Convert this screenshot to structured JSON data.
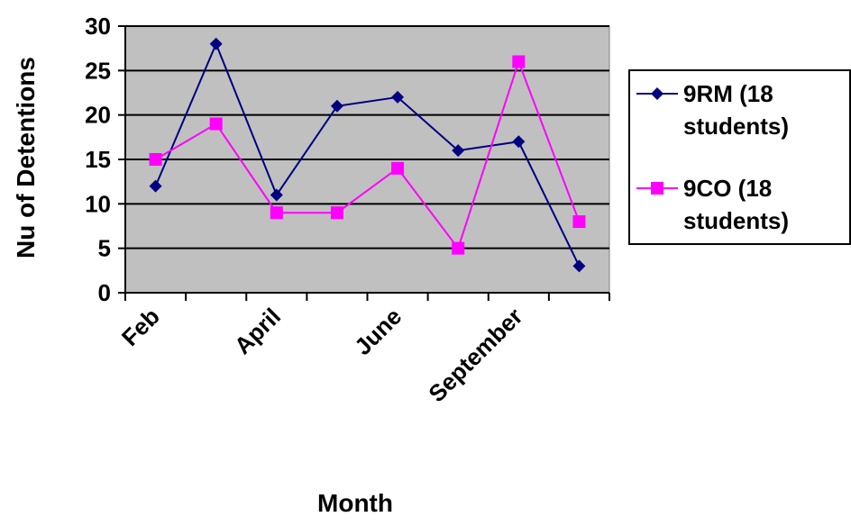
{
  "chart_data": {
    "type": "line",
    "xlabel": "Month",
    "ylabel": "Nu of Detentions",
    "ylim": [
      0,
      30
    ],
    "yticks": [
      0,
      5,
      10,
      15,
      20,
      25,
      30
    ],
    "x_tick_labels_shown": [
      "Feb",
      "April",
      "June",
      "September"
    ],
    "x_tick_label_positions": [
      0,
      2,
      4,
      6
    ],
    "n_points": 8,
    "grid": "horizontal",
    "plot_background": "#c0c0c0",
    "legend_position": "right",
    "series": [
      {
        "name": "9RM (18 students)",
        "legend_lines": [
          "9RM (18",
          "students)"
        ],
        "color": "#000080",
        "marker": "diamond",
        "values": [
          12,
          28,
          11,
          21,
          22,
          16,
          17,
          3
        ]
      },
      {
        "name": "9CO (18 students)",
        "legend_lines": [
          "9CO (18",
          "students)"
        ],
        "color": "#ff00ff",
        "marker": "square",
        "values": [
          15,
          19,
          9,
          9,
          14,
          5,
          26,
          8
        ]
      }
    ]
  }
}
